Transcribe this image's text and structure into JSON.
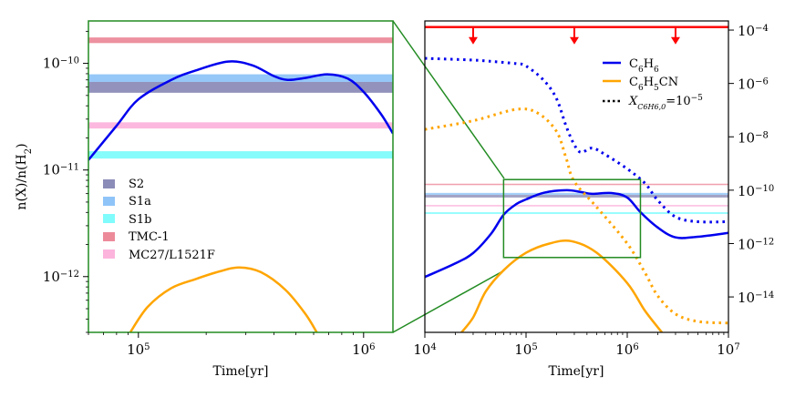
{
  "chart_data": [
    {
      "panel": "left-inset",
      "type": "line",
      "title": "",
      "xlabel": "Time[yr]",
      "ylabel": "n(X)/n(H2)",
      "xscale": "log",
      "yscale": "log",
      "xlim": [
        60000,
        1350000
      ],
      "ylim": [
        3e-13,
        2.5e-10
      ],
      "xticks": [
        {
          "value": 100000,
          "base": "10",
          "exp": "5"
        },
        {
          "value": 1000000,
          "base": "10",
          "exp": "6"
        }
      ],
      "yticks": [
        {
          "value": 1e-10,
          "base": "10",
          "exp": "−10"
        },
        {
          "value": 1e-11,
          "base": "10",
          "exp": "−11"
        },
        {
          "value": 1e-12,
          "base": "10",
          "exp": "−12"
        }
      ],
      "frame_color": "#228B22",
      "legend": {
        "position": "lower-left",
        "entries": [
          {
            "label": "S2",
            "color": "#8c8cb8"
          },
          {
            "label": "S1a",
            "color": "#8fc4f8"
          },
          {
            "label": "S1b",
            "color": "#80fcfc"
          },
          {
            "label": "TMC-1",
            "color": "#ec8a9a"
          },
          {
            "label": "MC27/L1521F",
            "color": "#fcb4dc"
          }
        ]
      },
      "bands": [
        {
          "name": "TMC-1",
          "low": 1.55e-10,
          "high": 1.75e-10,
          "color": "#ec8a9a"
        },
        {
          "name": "S1a",
          "low": 6.7e-11,
          "high": 7.9e-11,
          "color": "#8fc4f8"
        },
        {
          "name": "S2",
          "low": 5.3e-11,
          "high": 6.7e-11,
          "color": "#8c8cb8"
        },
        {
          "name": "MC27/L1521F",
          "low": 2.45e-11,
          "high": 2.8e-11,
          "color": "#fcb4dc"
        },
        {
          "name": "S1b",
          "low": 1.28e-11,
          "high": 1.5e-11,
          "color": "#80fcfc"
        }
      ],
      "series": [
        {
          "name": "C6H6",
          "style": "solid",
          "color": "#0000ee",
          "x": [
            60000,
            80000,
            100000,
            140000,
            180000,
            250000,
            320000,
            400000,
            460000,
            550000,
            690000,
            850000,
            1000000,
            1200000,
            1350000
          ],
          "y": [
            1.24e-11,
            2.6e-11,
            4.6e-11,
            7e-11,
            8.6e-11,
            1.04e-10,
            9.6e-11,
            7.6e-11,
            7e-11,
            7.3e-11,
            7.9e-11,
            7.2e-11,
            5.4e-11,
            3.3e-11,
            2.2e-11
          ]
        },
        {
          "name": "C6H5CN",
          "style": "solid",
          "color": "#ffa500",
          "x": [
            92000,
            110000,
            140000,
            180000,
            230000,
            280000,
            350000,
            450000,
            550000,
            620000
          ],
          "y": [
            3e-13,
            5.2e-13,
            7.8e-13,
            9.5e-13,
            1.12e-12,
            1.22e-12,
            1.1e-12,
            7.5e-13,
            4.5e-13,
            3e-13
          ]
        }
      ]
    },
    {
      "panel": "right-main",
      "type": "line",
      "title": "",
      "xlabel": "Time[yr]",
      "ylabel": "",
      "xscale": "log",
      "yscale": "log",
      "xlim": [
        10000,
        10000000
      ],
      "ylim": [
        4.7e-16,
        0.00022
      ],
      "yaxis_side": "right",
      "xticks": [
        {
          "value": 10000,
          "base": "10",
          "exp": "4"
        },
        {
          "value": 100000,
          "base": "10",
          "exp": "5"
        },
        {
          "value": 1000000,
          "base": "10",
          "exp": "6"
        },
        {
          "value": 10000000,
          "base": "10",
          "exp": "7"
        }
      ],
      "yticks": [
        {
          "value": 0.0001,
          "base": "10",
          "exp": "−4"
        },
        {
          "value": 1e-06,
          "base": "10",
          "exp": "−6"
        },
        {
          "value": 1e-08,
          "base": "10",
          "exp": "−8"
        },
        {
          "value": 1e-10,
          "base": "10",
          "exp": "−10"
        },
        {
          "value": 1e-12,
          "base": "10",
          "exp": "−12"
        },
        {
          "value": 1e-14,
          "base": "10",
          "exp": "−14"
        }
      ],
      "frame_color": "#000000",
      "upper_limit": {
        "value": 0.00013,
        "color": "#ff0000",
        "arrow_x": [
          30000,
          300000,
          3000000
        ]
      },
      "zoom_box": {
        "x": [
          60000,
          1350000
        ],
        "y": [
          3e-13,
          2.5e-10
        ],
        "color": "#228B22"
      },
      "legend": {
        "position": "upper-right",
        "entries": [
          {
            "label_base": "C",
            "label": "C6H6",
            "style": "solid",
            "color": "#0000ee"
          },
          {
            "label": "C6H5CN",
            "style": "solid",
            "color": "#ffa500"
          },
          {
            "label": "X_{C6H6,0}=10^-5",
            "style": "dotted",
            "color": "#000000"
          }
        ]
      },
      "bands": [
        {
          "name": "TMC-1",
          "low": 1.55e-10,
          "high": 1.75e-10,
          "color": "#ec8a9a"
        },
        {
          "name": "S1a",
          "low": 6.7e-11,
          "high": 7.9e-11,
          "color": "#8fc4f8"
        },
        {
          "name": "S2",
          "low": 5.3e-11,
          "high": 6.7e-11,
          "color": "#8c8cb8"
        },
        {
          "name": "MC27/L1521F",
          "low": 2.45e-11,
          "high": 2.8e-11,
          "color": "#fcb4dc"
        },
        {
          "name": "S1b",
          "low": 1.28e-11,
          "high": 1.5e-11,
          "color": "#80fcfc"
        }
      ],
      "series": [
        {
          "name": "C6H6",
          "style": "solid",
          "color": "#0000ee",
          "x": [
            10000,
            20000,
            30000,
            45000,
            60000,
            80000,
            100000,
            150000,
            250000,
            350000,
            450000,
            700000,
            1000000,
            1350000,
            2000000,
            3000000,
            5000000,
            10000000
          ],
          "y": [
            5.6e-14,
            1.8e-13,
            4.4e-13,
            2.3e-12,
            1.2e-11,
            3e-11,
            4.5e-11,
            8e-11,
            1e-10,
            8.5e-11,
            7.3e-11,
            7.8e-11,
            5.3e-11,
            1.5e-11,
            4e-12,
            1.7e-12,
            1.8e-12,
            2.5e-12
          ]
        },
        {
          "name": "C6H6 (X_C6H6,0=1e-5)",
          "style": "dotted",
          "color": "#0000ee",
          "x": [
            10000,
            30000,
            50000,
            80000,
            100000,
            150000,
            200000,
            250000,
            300000,
            350000,
            450000,
            600000,
            1000000,
            1500000,
            2000000,
            3000000,
            5000000,
            10000000
          ],
          "y": [
            8.7e-06,
            7.5e-06,
            6.5e-06,
            5.5e-06,
            4.5e-06,
            1.3e-06,
            2.7e-07,
            2.4e-08,
            5e-09,
            2.6e-09,
            3.8e-09,
            2.2e-09,
            6.3e-10,
            1.8e-10,
            4.2e-11,
            1e-11,
            6.6e-12,
            6.6e-12
          ]
        },
        {
          "name": "C6H5CN (X_C6H6,0=1e-5)",
          "style": "dotted",
          "color": "#ffa500",
          "x": [
            10000,
            30000,
            80000,
            130000,
            200000,
            250000,
            300000,
            500000,
            1000000,
            1500000,
            2000000,
            3000000,
            5000000,
            10000000
          ],
          "y": [
            1.9e-08,
            4e-08,
            1.07e-07,
            7.8e-08,
            1.6e-08,
            1.5e-09,
            2.1e-10,
            2.3e-11,
            1e-12,
            8e-14,
            1.1e-14,
            2.3e-15,
            1.2e-15,
            1.05e-15
          ]
        },
        {
          "name": "C6H5CN",
          "style": "solid",
          "color": "#ffa500",
          "x": [
            23000,
            30000,
            40000,
            60000,
            100000,
            170000,
            280000,
            500000,
            1000000,
            1500000,
            2200000
          ],
          "y": [
            4.7e-16,
            1.7e-15,
            1.6e-14,
            1e-13,
            4.5e-13,
            1e-12,
            1.23e-12,
            4.5e-13,
            3.3e-14,
            3e-15,
            4.7e-16
          ]
        }
      ]
    }
  ],
  "labels": {
    "left_xlabel": "Time[yr]",
    "right_xlabel": "Time[yr]",
    "ylabel_prefix": "n(X)/n(H",
    "ylabel_sub": "2",
    "ylabel_suffix": ")",
    "legend_left": [
      "S2",
      "S1a",
      "S1b",
      "TMC-1",
      "MC27/L1521F"
    ],
    "legend_right_c6h6": {
      "a": "C",
      "b": "6",
      "c": "H",
      "d": "6"
    },
    "legend_right_c6h5cn": {
      "a": "C",
      "b": "6",
      "c": "H",
      "d": "5",
      "e": "CN"
    },
    "legend_right_dotted": {
      "x": "X",
      "sub": "C6H6,0",
      "eq": "=10",
      "sup": "−5"
    }
  }
}
